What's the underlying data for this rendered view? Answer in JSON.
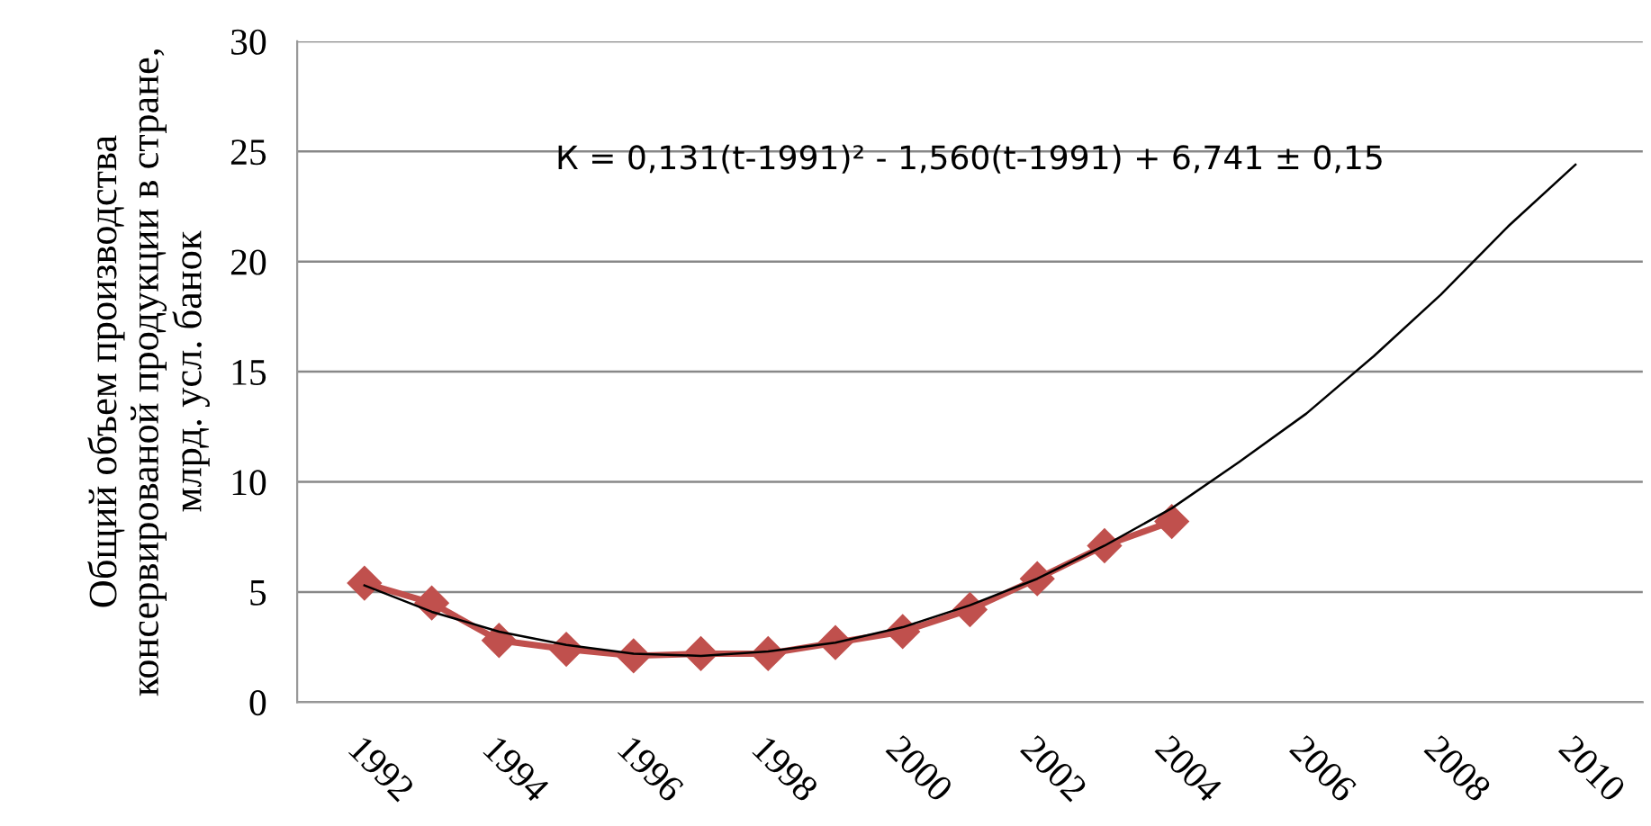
{
  "chart_data": {
    "type": "line",
    "ylabel": "Общий объем производства консервированой продукции в стране, млрд. усл. банок",
    "xlim": [
      1991,
      2011
    ],
    "xticks": [
      1992,
      1994,
      1996,
      1998,
      2000,
      2002,
      2004,
      2006,
      2008,
      2010
    ],
    "ylim": [
      0,
      30
    ],
    "yticks": [
      0,
      5,
      10,
      15,
      20,
      25,
      30
    ],
    "grid": "y",
    "series": [
      {
        "color": "#000000",
        "marker": "none",
        "x": [
          1992,
          1993,
          1994,
          1995,
          1996,
          1997,
          1998,
          1999,
          2000,
          2001,
          2002,
          2003,
          2004,
          2005,
          2006,
          2007,
          2008,
          2009,
          2010
        ],
        "values": [
          5.3,
          4.1,
          3.2,
          2.6,
          2.2,
          2.1,
          2.3,
          2.7,
          3.4,
          4.4,
          5.6,
          7.1,
          8.8,
          10.9,
          13.1,
          15.7,
          18.5,
          21.6,
          24.4
        ]
      },
      {
        "color": "#c0504d",
        "marker": "diamond",
        "x": [
          1992,
          1993,
          1994,
          1995,
          1996,
          1997,
          1998,
          1999,
          2000,
          2001,
          2002,
          2003,
          2004
        ],
        "values": [
          5.4,
          4.5,
          2.8,
          2.4,
          2.1,
          2.2,
          2.2,
          2.7,
          3.2,
          4.2,
          5.6,
          7.1,
          8.2
        ]
      }
    ],
    "annotations": [
      {
        "text": "К = 0,131(t-1991)² - 1,560(t-1991) + 6,741 ± 0,15"
      }
    ]
  }
}
